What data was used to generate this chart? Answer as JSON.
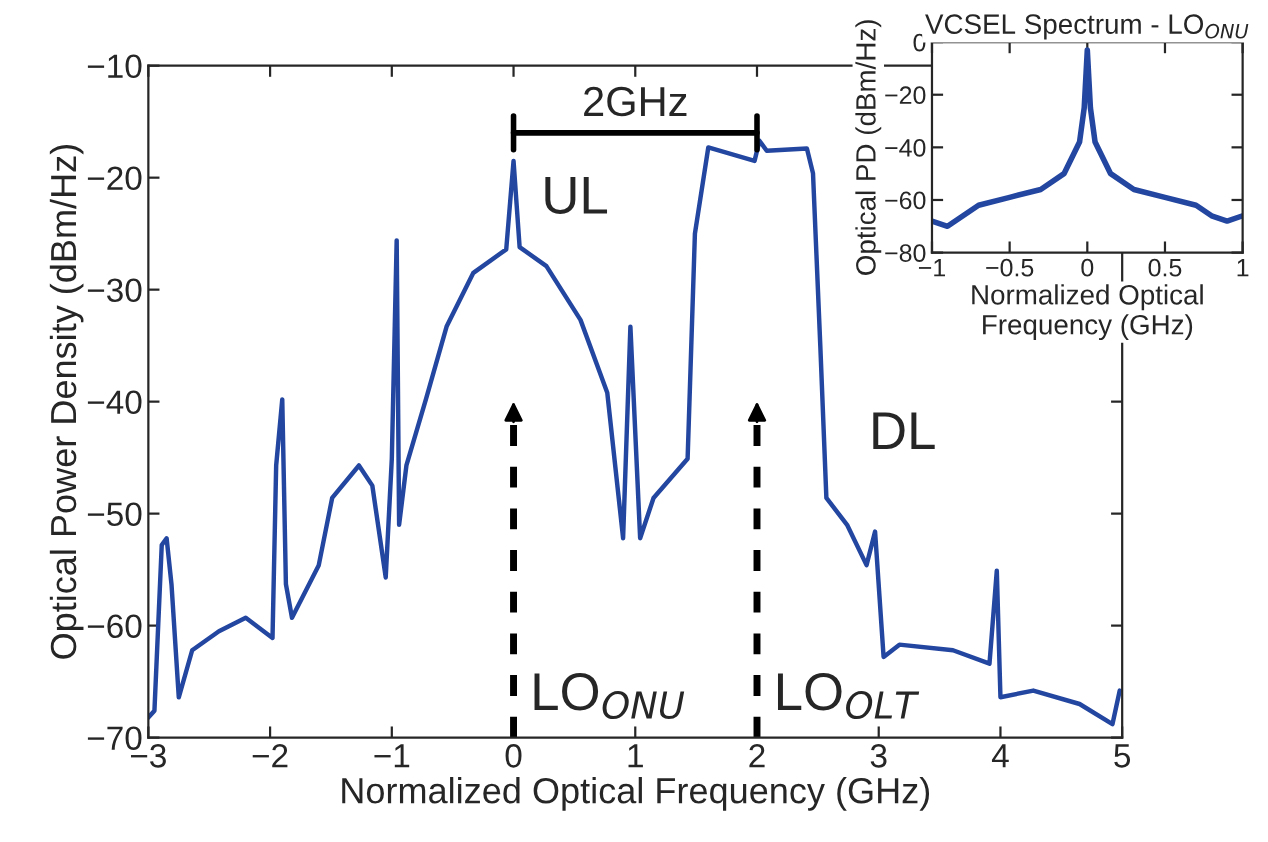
{
  "chart_data": [
    {
      "type": "line",
      "xlabel": "Normalized Optical Frequency (GHz)",
      "ylabel": "Optical Power Density (dBm/Hz)",
      "x": [
        -3,
        -2.95,
        -2.89,
        -2.85,
        -2.81,
        -2.75,
        -2.64,
        -2.42,
        -2.2,
        -1.98,
        -1.95,
        -1.9,
        -1.87,
        -1.82,
        -1.6,
        -1.49,
        -1.27,
        -1.16,
        -1.05,
        -1.0,
        -0.96,
        -0.94,
        -0.88,
        -0.72,
        -0.55,
        -0.33,
        -0.06,
        0,
        0.05,
        0.27,
        0.55,
        0.77,
        0.9,
        0.96,
        1.04,
        1.15,
        1.43,
        1.49,
        1.6,
        1.98,
        2.02,
        2.08,
        2.41,
        2.46,
        2.52,
        2.57,
        2.74,
        2.9,
        2.97,
        3.04,
        3.17,
        3.61,
        3.91,
        3.97,
        4.0,
        4.27,
        4.65,
        4.92,
        4.98
      ],
      "series": [
        {
          "color": "#2346a0",
          "values": [
            -68.2,
            -67.6,
            -52.8,
            -52.2,
            -56.3,
            -66.4,
            -62.2,
            -60.5,
            -59.3,
            -61.1,
            -45.7,
            -39.8,
            -56.3,
            -59.3,
            -54.6,
            -48.6,
            -45.7,
            -47.5,
            -55.7,
            -45.1,
            -25.6,
            -51.0,
            -45.7,
            -39.8,
            -33.3,
            -28.5,
            -26.4,
            -18.5,
            -26.2,
            -27.9,
            -32.7,
            -39.2,
            -52.2,
            -33.3,
            -52.2,
            -48.6,
            -45.1,
            -25.0,
            -17.3,
            -18.5,
            -16.7,
            -17.6,
            -17.4,
            -19.6,
            -35.0,
            -48.6,
            -51.0,
            -54.6,
            -51.6,
            -62.8,
            -61.7,
            -62.2,
            -63.4,
            -55.1,
            -66.4,
            -65.8,
            -67.0,
            -68.8,
            -65.8
          ]
        }
      ],
      "xlim": [
        -3,
        5
      ],
      "ylim": [
        -70,
        -10
      ],
      "xticks": [
        -3,
        -2,
        -1,
        0,
        1,
        2,
        3,
        4,
        5
      ],
      "yticks": [
        -70,
        -60,
        -50,
        -40,
        -30,
        -20,
        -10
      ],
      "ref_lines": [
        {
          "axis": "x",
          "value": 0,
          "label": "LO$_{ONU}$",
          "line_style": "dashed",
          "color": "#000000"
        },
        {
          "axis": "x",
          "value": 2,
          "label": "LO$_{OLT}$",
          "line_style": "dashed",
          "color": "#000000"
        }
      ],
      "annotations": [
        "2GHz",
        {
          "text": "UL",
          "x": 0,
          "y": -18.5
        },
        "DL"
      ]
    },
    {
      "type": "line",
      "title": "VCSEL Spectrum - LO$_{ONU}$",
      "xlabel": "Normalized Optical\nFrequency (GHz)",
      "ylabel": "Optical PD (dBm/Hz)",
      "x": [
        -1,
        -0.9,
        -0.8,
        -0.7,
        -0.5,
        -0.3,
        -0.15,
        -0.05,
        -0.02,
        0,
        0.02,
        0.05,
        0.15,
        0.3,
        0.5,
        0.7,
        0.8,
        0.9,
        1
      ],
      "series": [
        {
          "color": "#2346a0",
          "values": [
            -68,
            -70,
            -66,
            -62,
            -59,
            -56,
            -50,
            -38,
            -25,
            -3,
            -25,
            -38,
            -50,
            -56,
            -59,
            -62,
            -66,
            -68,
            -66
          ]
        }
      ],
      "xlim": [
        -1,
        1
      ],
      "ylim": [
        -80,
        0
      ],
      "xticks": [
        -1,
        -0.5,
        0,
        0.5,
        1
      ],
      "yticks": [
        -80,
        -60,
        -40,
        -20,
        0
      ]
    }
  ]
}
